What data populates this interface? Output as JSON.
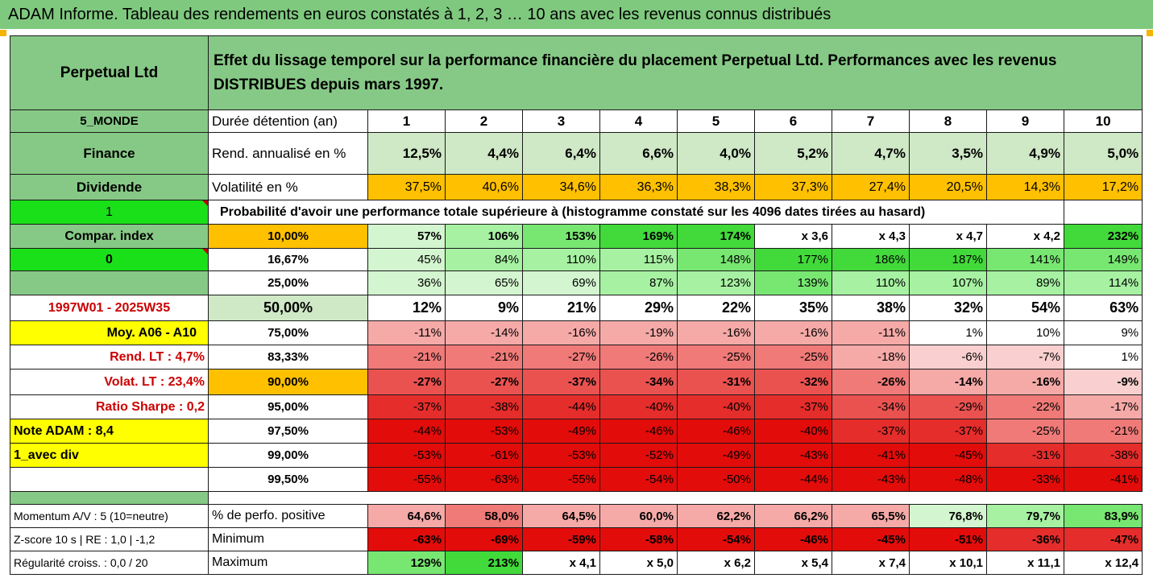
{
  "title": "ADAM Informe. Tableau des rendements en euros constatés à 1, 2, 3 … 10 ans avec les revenus connus distribués",
  "header": {
    "fund": "Perpetual Ltd",
    "description": "Effet du lissage temporel sur la performance financière du placement Perpetual Ltd. Performances avec les revenus DISTRIBUES depuis mars 1997."
  },
  "years_label": "Durée détention (an)",
  "years": [
    "1",
    "2",
    "3",
    "4",
    "5",
    "6",
    "7",
    "8",
    "9",
    "10"
  ],
  "left_labels": {
    "category": "5_MONDE",
    "sector": "Finance",
    "type": "Dividende",
    "flag1": "1",
    "compar": "Compar. index",
    "flag0": "0",
    "period": "1997W01 - 2025W35",
    "moy": "Moy. A06 - A10",
    "rend_lt": "Rend. LT :   4,7%",
    "volat_lt": "Volat. LT :   23,4%",
    "sharpe": "Ratio Sharpe :   0,2",
    "note": "Note ADAM : 8,4",
    "avec_div": "1_avec div"
  },
  "rend": {
    "label": "Rend. annualisé en %",
    "values": [
      "12,5%",
      "4,4%",
      "6,4%",
      "6,6%",
      "4,0%",
      "5,2%",
      "4,7%",
      "3,5%",
      "4,9%",
      "5,0%"
    ]
  },
  "volat": {
    "label": "Volatilité en %",
    "values": [
      "37,5%",
      "40,6%",
      "34,6%",
      "36,3%",
      "38,3%",
      "37,3%",
      "27,4%",
      "20,5%",
      "14,3%",
      "17,2%"
    ]
  },
  "proba_title": "Probabilité d'avoir une performance totale supérieure à (histogramme constaté sur les 4096 dates tirées au hasard)",
  "quantiles": [
    {
      "p": "10,00%",
      "values": [
        "57%",
        "106%",
        "153%",
        "169%",
        "174%",
        "x 3,6",
        "x 4,3",
        "x 4,7",
        "x 4,2",
        "232%"
      ]
    },
    {
      "p": "16,67%",
      "values": [
        "45%",
        "84%",
        "110%",
        "115%",
        "148%",
        "177%",
        "186%",
        "187%",
        "141%",
        "149%"
      ]
    },
    {
      "p": "25,00%",
      "values": [
        "36%",
        "65%",
        "69%",
        "87%",
        "123%",
        "139%",
        "110%",
        "107%",
        "89%",
        "114%"
      ]
    },
    {
      "p": "50,00%",
      "values": [
        "12%",
        "9%",
        "21%",
        "29%",
        "22%",
        "35%",
        "38%",
        "32%",
        "54%",
        "63%"
      ]
    },
    {
      "p": "75,00%",
      "values": [
        "-11%",
        "-14%",
        "-16%",
        "-19%",
        "-16%",
        "-16%",
        "-11%",
        "1%",
        "10%",
        "9%"
      ]
    },
    {
      "p": "83,33%",
      "values": [
        "-21%",
        "-21%",
        "-27%",
        "-26%",
        "-25%",
        "-25%",
        "-18%",
        "-6%",
        "-7%",
        "1%"
      ]
    },
    {
      "p": "90,00%",
      "values": [
        "-27%",
        "-27%",
        "-37%",
        "-34%",
        "-31%",
        "-32%",
        "-26%",
        "-14%",
        "-16%",
        "-9%"
      ]
    },
    {
      "p": "95,00%",
      "values": [
        "-37%",
        "-38%",
        "-44%",
        "-40%",
        "-40%",
        "-37%",
        "-34%",
        "-29%",
        "-22%",
        "-17%"
      ]
    },
    {
      "p": "97,50%",
      "values": [
        "-44%",
        "-53%",
        "-49%",
        "-46%",
        "-46%",
        "-40%",
        "-37%",
        "-37%",
        "-25%",
        "-21%"
      ]
    },
    {
      "p": "99,00%",
      "values": [
        "-53%",
        "-61%",
        "-53%",
        "-52%",
        "-49%",
        "-43%",
        "-41%",
        "-45%",
        "-31%",
        "-38%"
      ]
    },
    {
      "p": "99,50%",
      "values": [
        "-55%",
        "-63%",
        "-55%",
        "-54%",
        "-50%",
        "-44%",
        "-43%",
        "-48%",
        "-33%",
        "-41%"
      ]
    }
  ],
  "bottom": [
    {
      "left": "Momentum A/V : 5 (10=neutre)",
      "label": "% de perfo. positive",
      "values": [
        "64,6%",
        "58,0%",
        "64,5%",
        "60,0%",
        "62,2%",
        "66,2%",
        "65,5%",
        "76,8%",
        "79,7%",
        "83,9%"
      ]
    },
    {
      "left": "Z-score 10 s  | RE : 1,0 | -1,2",
      "label": "Minimum",
      "values": [
        "-63%",
        "-69%",
        "-59%",
        "-58%",
        "-54%",
        "-46%",
        "-45%",
        "-51%",
        "-36%",
        "-47%"
      ]
    },
    {
      "left": "Régularité croiss. : 0,0 / 20",
      "label": "Maximum",
      "values": [
        "129%",
        "213%",
        "x 4,1",
        "x 5,0",
        "x 6,2",
        "x 5,4",
        "x 7,4",
        "x 10,1",
        "x 11,1",
        "x 12,4"
      ]
    }
  ],
  "colors": {
    "header_green": "#86c986",
    "title_green": "#7fc97f",
    "orange": "#ffc000",
    "yellow": "#ffff00",
    "bright_green": "#19e019",
    "label_red": "#cc0000"
  }
}
